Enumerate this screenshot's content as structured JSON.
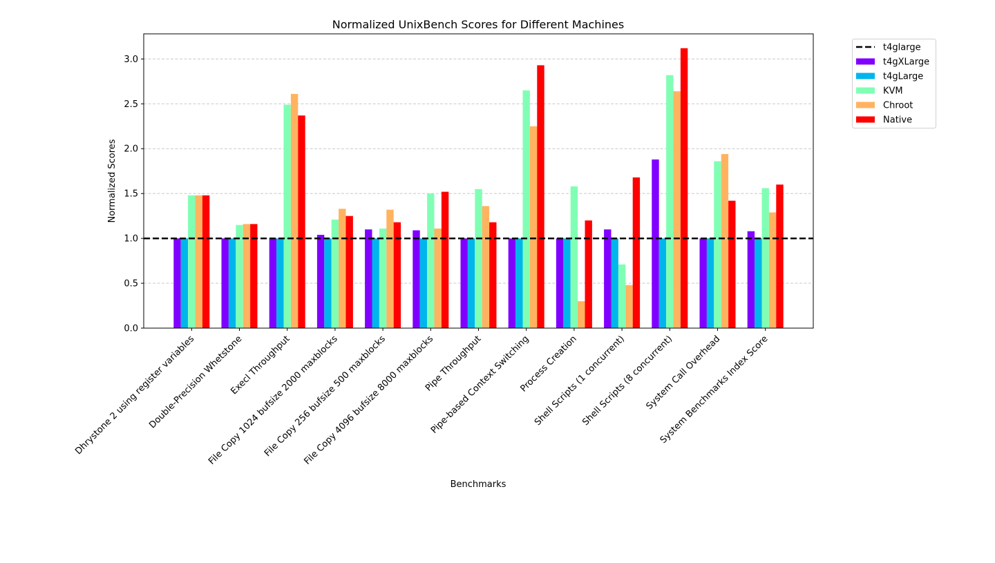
{
  "chart_data": {
    "type": "bar",
    "title": "Normalized UnixBench Scores for Different Machines",
    "xlabel": "Benchmarks",
    "ylabel": "Normalized Scores",
    "ylim": [
      0,
      3.28
    ],
    "yticks": [
      "0.0",
      "0.5",
      "1.0",
      "1.5",
      "2.0",
      "2.5",
      "3.0"
    ],
    "grid": "horizontal dashed",
    "legend_position": "outside top-right",
    "categories": [
      "Dhrystone 2 using register variables",
      "Double-Precision Whetstone",
      "Execl Throughput",
      "File Copy 1024 bufsize 2000 maxblocks",
      "File Copy 256 bufsize 500 maxblocks",
      "File Copy 4096 bufsize 8000 maxblocks",
      "Pipe Throughput",
      "Pipe-based Context Switching",
      "Process Creation",
      "Shell Scripts (1 concurrent)",
      "Shell Scripts (8 concurrent)",
      "System Call Overhead",
      "System Benchmarks Index Score"
    ],
    "reference_line": {
      "name": "t4glarge",
      "value": 1.0,
      "color": "#000000"
    },
    "series": [
      {
        "name": "t4gXLarge",
        "color": "#8000ff",
        "values": [
          1.0,
          1.0,
          1.0,
          1.04,
          1.1,
          1.09,
          1.0,
          1.0,
          1.0,
          1.1,
          1.88,
          1.0,
          1.08
        ]
      },
      {
        "name": "t4gLarge",
        "color": "#00b5eb",
        "values": [
          1.0,
          1.0,
          1.0,
          1.0,
          1.0,
          1.0,
          1.0,
          1.0,
          1.0,
          1.0,
          1.0,
          1.0,
          1.0
        ]
      },
      {
        "name": "KVM",
        "color": "#80ffb4",
        "values": [
          1.48,
          1.15,
          2.49,
          1.21,
          1.11,
          1.5,
          1.55,
          2.65,
          1.58,
          0.71,
          2.82,
          1.86,
          1.56
        ]
      },
      {
        "name": "Chroot",
        "color": "#ffb360",
        "values": [
          1.48,
          1.16,
          2.61,
          1.33,
          1.32,
          1.11,
          1.36,
          2.25,
          0.3,
          0.48,
          2.64,
          1.94,
          1.29
        ]
      },
      {
        "name": "Native",
        "color": "#ff0000",
        "values": [
          1.48,
          1.16,
          2.37,
          1.25,
          1.18,
          1.52,
          1.18,
          2.93,
          1.2,
          1.68,
          3.12,
          1.42,
          1.6
        ]
      }
    ]
  }
}
